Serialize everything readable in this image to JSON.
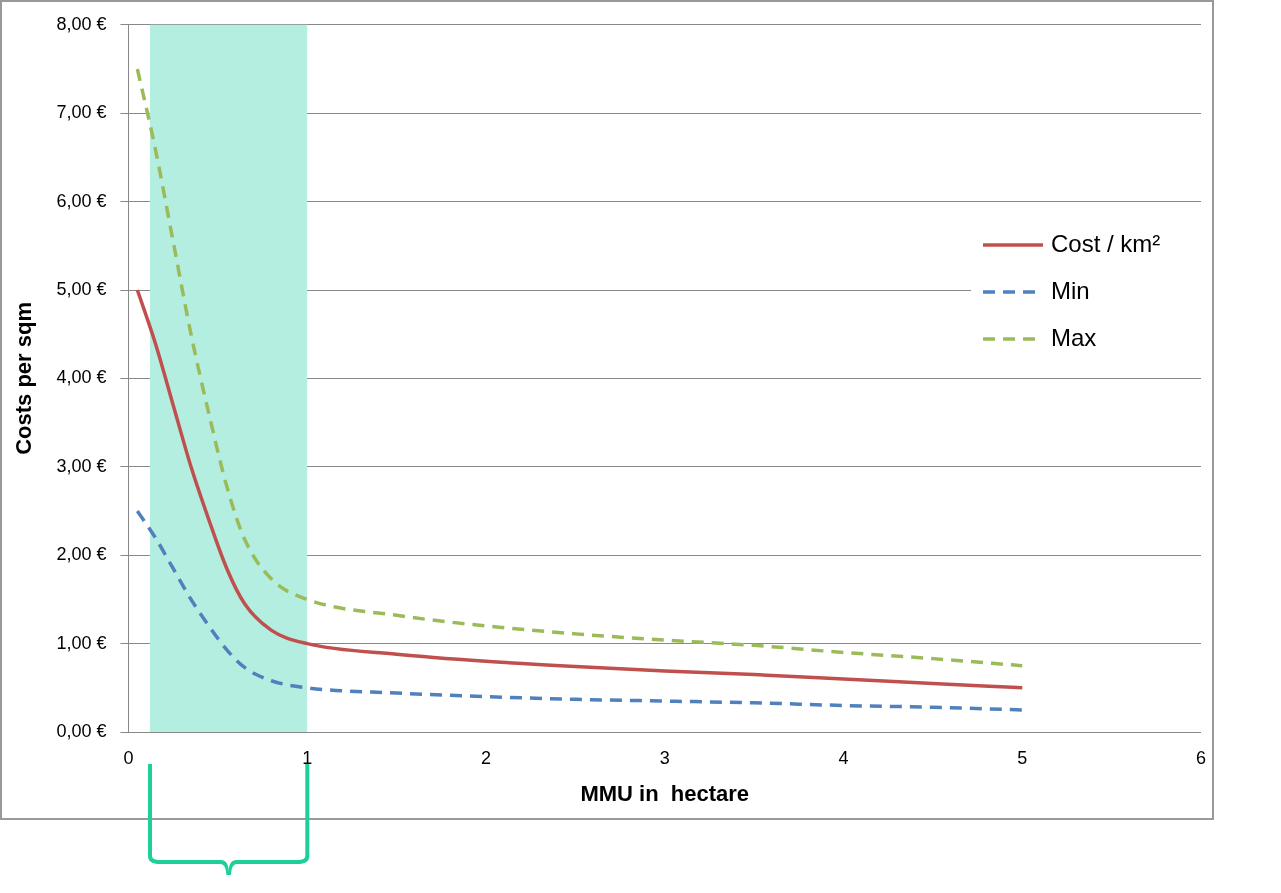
{
  "chart_data": {
    "type": "line",
    "xlabel": "MMU in  hectare",
    "ylabel": "Costs per sqm",
    "xlim": [
      0,
      6
    ],
    "xticks": [
      0,
      1,
      2,
      3,
      4,
      5,
      6
    ],
    "ylim": [
      0,
      8
    ],
    "yticks": [
      {
        "value": 0,
        "label": "0,00 €"
      },
      {
        "value": 1,
        "label": "1,00 €"
      },
      {
        "value": 2,
        "label": "2,00 €"
      },
      {
        "value": 3,
        "label": "3,00 €"
      },
      {
        "value": 4,
        "label": "4,00 €"
      },
      {
        "value": 5,
        "label": "5,00 €"
      },
      {
        "value": 6,
        "label": "6,00 €"
      },
      {
        "value": 7,
        "label": "7,00 €"
      },
      {
        "value": 8,
        "label": "8,00 €"
      }
    ],
    "grid": "y",
    "legend": "right",
    "marker": "none",
    "x": [
      0.05,
      0.15,
      0.25,
      0.35,
      0.45,
      0.55,
      0.65,
      0.8,
      1,
      1.5,
      2,
      2.5,
      3,
      3.5,
      4,
      4.5,
      5
    ],
    "series": [
      {
        "name": "Cost / km²",
        "color": "#c0504d",
        "line_style": "solid",
        "values": [
          5.0,
          4.4,
          3.7,
          3.0,
          2.4,
          1.85,
          1.45,
          1.15,
          1.0,
          0.88,
          0.8,
          0.74,
          0.69,
          0.65,
          0.6,
          0.55,
          0.5
        ]
      },
      {
        "name": "Min",
        "color": "#4f81bd",
        "line_style": "dashed",
        "values": [
          2.5,
          2.2,
          1.85,
          1.5,
          1.2,
          0.93,
          0.73,
          0.58,
          0.5,
          0.44,
          0.4,
          0.37,
          0.35,
          0.33,
          0.3,
          0.28,
          0.25
        ]
      },
      {
        "name": "Max",
        "color": "#9bbb59",
        "line_style": "dashed",
        "values": [
          7.5,
          6.6,
          5.55,
          4.5,
          3.6,
          2.78,
          2.18,
          1.73,
          1.5,
          1.32,
          1.2,
          1.11,
          1.04,
          0.98,
          0.9,
          0.83,
          0.75
        ]
      }
    ],
    "bands": [
      {
        "axis": "x",
        "from": 0.12,
        "to": 1,
        "color": "#b3eee0"
      }
    ]
  }
}
